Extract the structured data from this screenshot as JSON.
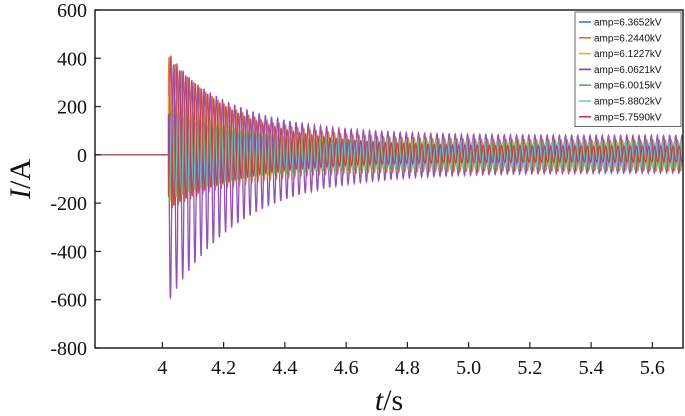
{
  "chart_data": {
    "type": "line",
    "xlabel_var": "t",
    "xlabel_unit": "/s",
    "ylabel_var": "I",
    "ylabel_unit": "/A",
    "xlim": [
      3.78,
      5.7
    ],
    "ylim": [
      -800,
      600
    ],
    "x_ticks": [
      4,
      4.2,
      4.4,
      4.6,
      4.8,
      5.0,
      5.2,
      5.4,
      5.6
    ],
    "x_tick_labels": [
      "4",
      "4.2",
      "4.4",
      "4.6",
      "4.8",
      "5.0",
      "5.2",
      "5.4",
      "5.6"
    ],
    "y_ticks": [
      600,
      400,
      200,
      0,
      -200,
      -400,
      -600,
      -800
    ],
    "y_tick_labels": [
      "600",
      "400",
      "200",
      "0",
      "-200",
      "-400",
      "-600",
      "-800"
    ],
    "grid": false,
    "legend_position": "top-right",
    "fault_time_s": 4.02,
    "oscillation_frequency_hz": 50,
    "series": [
      {
        "name": "amp=6.3652kV",
        "color": "#3a78c4",
        "peak_pos": 180,
        "peak_neg": -170,
        "steady_pos": 40,
        "steady_neg": -40,
        "decay_tau_s": 0.2
      },
      {
        "name": "amp=6.2440kV",
        "color": "#e06a33",
        "peak_pos": 410,
        "peak_neg": -230,
        "steady_pos": 60,
        "steady_neg": -65,
        "decay_tau_s": 0.22
      },
      {
        "name": "amp=6.1227kV",
        "color": "#e8b52b",
        "peak_pos": 250,
        "peak_neg": -200,
        "steady_pos": 50,
        "steady_neg": -55,
        "decay_tau_s": 0.2
      },
      {
        "name": "amp=6.0621kV",
        "color": "#8a3fa6",
        "peak_pos": 395,
        "peak_neg": -610,
        "steady_pos": 80,
        "steady_neg": -75,
        "decay_tau_s": 0.24
      },
      {
        "name": "amp=6.0015kV",
        "color": "#6aa84f",
        "peak_pos": 200,
        "peak_neg": -190,
        "steady_pos": 55,
        "steady_neg": -60,
        "decay_tau_s": 0.2
      },
      {
        "name": "amp=5.8802kV",
        "color": "#6dc7e8",
        "peak_pos": 190,
        "peak_neg": -180,
        "steady_pos": 50,
        "steady_neg": -50,
        "decay_tau_s": 0.2
      },
      {
        "name": "amp=5.7590kV",
        "color": "#c23b4a",
        "peak_pos": 425,
        "peak_neg": -225,
        "steady_pos": 35,
        "steady_neg": -30,
        "decay_tau_s": 0.22
      }
    ]
  }
}
